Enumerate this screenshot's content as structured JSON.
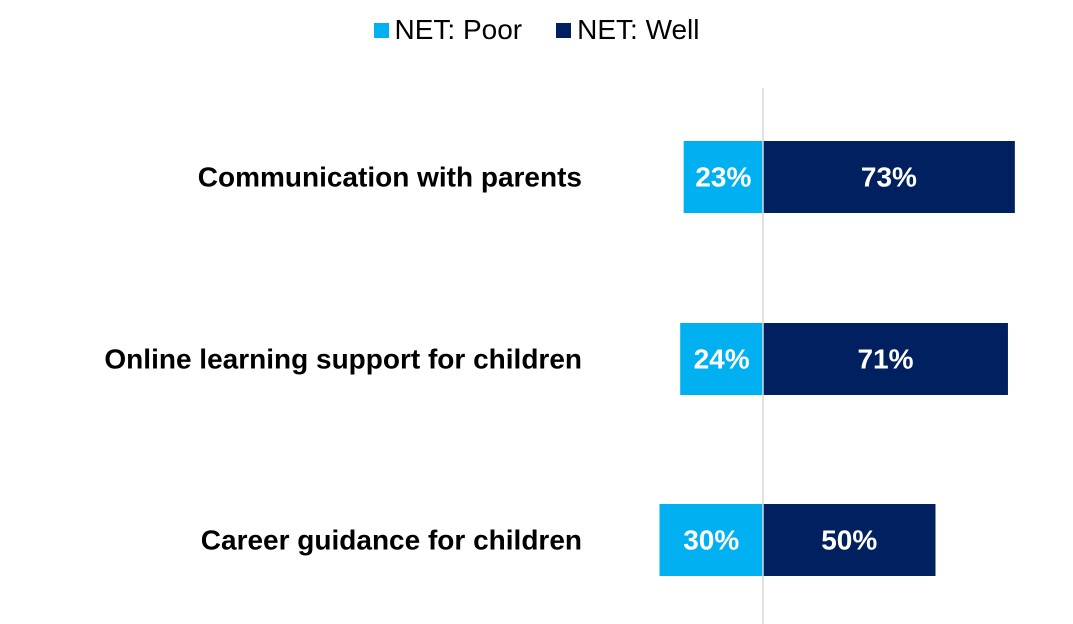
{
  "legend": {
    "items": [
      {
        "label": "NET: Poor",
        "color": "#00b0f0"
      },
      {
        "label": "NET: Well",
        "color": "#002060"
      }
    ]
  },
  "chart_data": {
    "type": "bar",
    "orientation": "horizontal-diverging",
    "categories": [
      "Communication with parents",
      "Online learning support for children",
      "Career guidance for children"
    ],
    "series": [
      {
        "name": "NET: Poor",
        "values": [
          23,
          24,
          30
        ],
        "color": "#00b0f0",
        "direction": "left"
      },
      {
        "name": "NET: Well",
        "values": [
          73,
          71,
          50
        ],
        "color": "#002060",
        "direction": "right"
      }
    ],
    "value_labels": {
      "NET: Poor": [
        "23%",
        "24%",
        "30%"
      ],
      "NET: Well": [
        "73%",
        "71%",
        "50%"
      ]
    },
    "title": "",
    "xlabel": "",
    "ylabel": "",
    "legend_position": "top-center",
    "grid": false,
    "center_line_color": "#d9d9d9"
  }
}
